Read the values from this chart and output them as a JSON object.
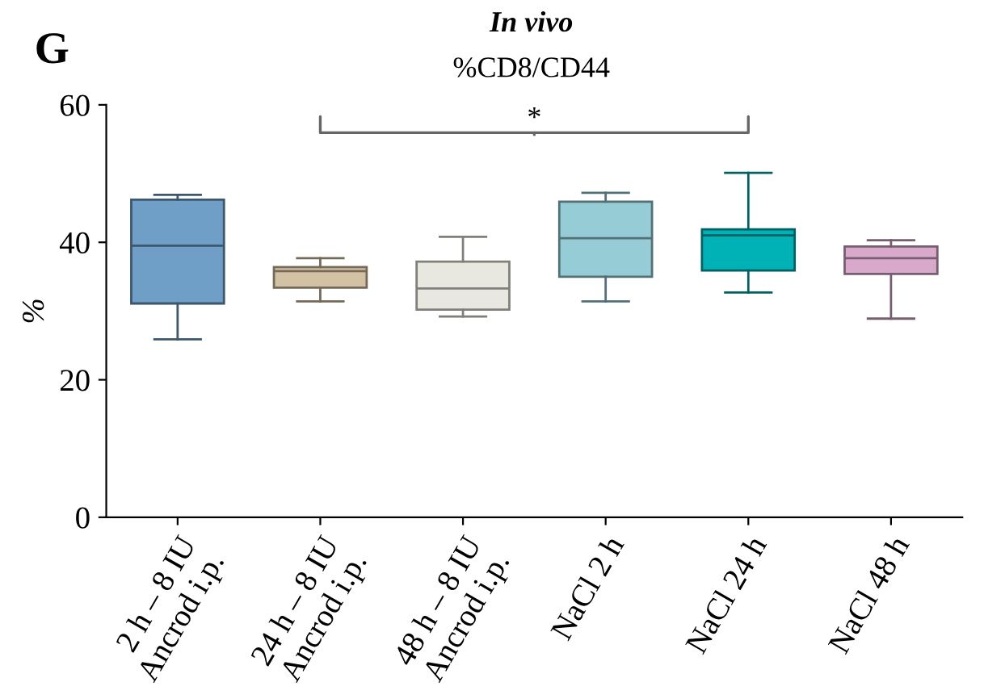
{
  "chart_data": {
    "type": "box",
    "title": "In vivo",
    "subtitle": "%CD8/CD44",
    "ylabel": "%",
    "categories": [
      "2 h – 8 IU\nAncrod i.p.",
      "24 h – 8 IU\nAncrod i.p.",
      "48 h – 8 IU\nAncrod i.p.",
      "NaCl 2 h",
      "NaCl 24 h",
      "NaCl 48 h"
    ],
    "colors": [
      "#6f9ec6",
      "#d3c1a3",
      "#e9e8e0",
      "#96ccd6",
      "#00b1b5",
      "#d8a9cb"
    ],
    "boxes": [
      {
        "low": 25.9,
        "q1": 31.1,
        "median": 39.5,
        "q3": 46.2,
        "high": 46.9
      },
      {
        "low": 31.4,
        "q1": 33.4,
        "median": 35.8,
        "q3": 36.4,
        "high": 37.7
      },
      {
        "low": 29.2,
        "q1": 30.2,
        "median": 33.3,
        "q3": 37.2,
        "high": 40.8
      },
      {
        "low": 31.4,
        "q1": 35.0,
        "median": 40.6,
        "q3": 45.9,
        "high": 47.2
      },
      {
        "low": 32.7,
        "q1": 35.9,
        "median": 41.0,
        "q3": 41.9,
        "high": 50.1
      },
      {
        "low": 28.9,
        "q1": 35.4,
        "median": 37.7,
        "q3": 39.4,
        "high": 40.3
      }
    ],
    "ylim": [
      0,
      60
    ],
    "yticks": [
      0,
      20,
      40,
      60
    ],
    "grid": false,
    "annotations": [
      "G",
      "*"
    ]
  }
}
